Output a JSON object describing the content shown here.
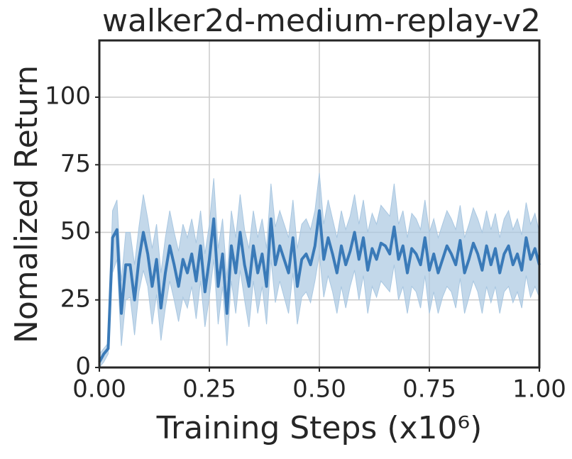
{
  "chart_data": {
    "type": "line",
    "title": "walker2d-medium-replay-v2",
    "xlabel": "Training Steps (x10⁶)",
    "ylabel": "Nomalized Return",
    "xlim": [
      0,
      1
    ],
    "ylim": [
      0,
      121
    ],
    "xticks": [
      {
        "value": 0,
        "label": "0.00"
      },
      {
        "value": 0.25,
        "label": "0.25"
      },
      {
        "value": 0.5,
        "label": "0.50"
      },
      {
        "value": 0.75,
        "label": "0.75"
      },
      {
        "value": 1,
        "label": "1.00"
      }
    ],
    "yticks": [
      0,
      25,
      50,
      75,
      100
    ],
    "grid": true,
    "x": [
      0,
      0.01,
      0.02,
      0.03,
      0.04,
      0.05,
      0.06,
      0.07,
      0.08,
      0.09,
      0.1,
      0.11,
      0.12,
      0.13,
      0.14,
      0.15,
      0.16,
      0.17,
      0.18,
      0.19,
      0.2,
      0.21,
      0.22,
      0.23,
      0.24,
      0.25,
      0.26,
      0.27,
      0.28,
      0.29,
      0.3,
      0.31,
      0.32,
      0.33,
      0.34,
      0.35,
      0.36,
      0.37,
      0.38,
      0.39,
      0.4,
      0.41,
      0.42,
      0.43,
      0.44,
      0.45,
      0.46,
      0.47,
      0.48,
      0.49,
      0.5,
      0.51,
      0.52,
      0.53,
      0.54,
      0.55,
      0.56,
      0.57,
      0.58,
      0.59,
      0.6,
      0.61,
      0.62,
      0.63,
      0.64,
      0.65,
      0.66,
      0.67,
      0.68,
      0.69,
      0.7,
      0.71,
      0.72,
      0.73,
      0.74,
      0.75,
      0.76,
      0.77,
      0.78,
      0.79,
      0.8,
      0.81,
      0.82,
      0.83,
      0.84,
      0.85,
      0.86,
      0.87,
      0.88,
      0.89,
      0.9,
      0.91,
      0.92,
      0.93,
      0.94,
      0.95,
      0.96,
      0.97,
      0.98,
      0.99,
      1
    ],
    "series": [
      {
        "color": "#3a7ab8",
        "band_color": "#a9c7e1",
        "values": [
          2,
          5,
          7,
          48,
          51,
          20,
          38,
          38,
          25,
          40,
          50,
          42,
          30,
          40,
          22,
          35,
          45,
          38,
          30,
          40,
          35,
          42,
          32,
          45,
          28,
          40,
          55,
          30,
          42,
          20,
          45,
          35,
          50,
          38,
          30,
          45,
          35,
          42,
          30,
          55,
          38,
          45,
          40,
          35,
          48,
          30,
          40,
          42,
          38,
          45,
          58,
          40,
          48,
          42,
          35,
          45,
          38,
          43,
          50,
          40,
          48,
          36,
          44,
          40,
          46,
          45,
          42,
          52,
          40,
          45,
          35,
          44,
          42,
          38,
          48,
          36,
          42,
          35,
          40,
          45,
          42,
          38,
          47,
          35,
          40,
          46,
          42,
          36,
          45,
          38,
          44,
          35,
          42,
          45,
          38,
          42,
          36,
          48,
          40,
          44,
          38
        ],
        "lower": [
          0,
          2,
          5,
          35,
          40,
          8,
          25,
          26,
          12,
          28,
          36,
          30,
          16,
          27,
          10,
          22,
          32,
          25,
          17,
          26,
          22,
          30,
          18,
          32,
          15,
          26,
          40,
          16,
          30,
          8,
          32,
          20,
          36,
          25,
          15,
          32,
          20,
          30,
          16,
          40,
          24,
          32,
          26,
          20,
          35,
          16,
          26,
          28,
          24,
          32,
          42,
          26,
          34,
          28,
          20,
          30,
          22,
          30,
          36,
          25,
          34,
          20,
          30,
          26,
          32,
          30,
          28,
          38,
          25,
          30,
          20,
          30,
          28,
          22,
          34,
          20,
          28,
          20,
          26,
          30,
          28,
          22,
          33,
          20,
          26,
          32,
          28,
          20,
          30,
          24,
          30,
          20,
          28,
          30,
          24,
          28,
          22,
          34,
          26,
          30,
          26
        ],
        "upper": [
          5,
          7,
          9,
          58,
          62,
          32,
          50,
          50,
          38,
          52,
          64,
          55,
          44,
          53,
          35,
          48,
          58,
          50,
          43,
          53,
          48,
          55,
          46,
          58,
          42,
          53,
          70,
          44,
          55,
          33,
          58,
          48,
          64,
          51,
          44,
          58,
          48,
          55,
          44,
          68,
          52,
          58,
          53,
          48,
          62,
          44,
          53,
          55,
          51,
          58,
          72,
          53,
          62,
          55,
          48,
          58,
          51,
          56,
          64,
          53,
          62,
          50,
          57,
          53,
          60,
          58,
          56,
          68,
          53,
          58,
          48,
          57,
          55,
          51,
          62,
          50,
          55,
          48,
          53,
          58,
          55,
          51,
          60,
          48,
          53,
          59,
          55,
          50,
          58,
          51,
          57,
          48,
          55,
          58,
          51,
          55,
          49,
          61,
          53,
          57,
          50
        ]
      }
    ]
  }
}
